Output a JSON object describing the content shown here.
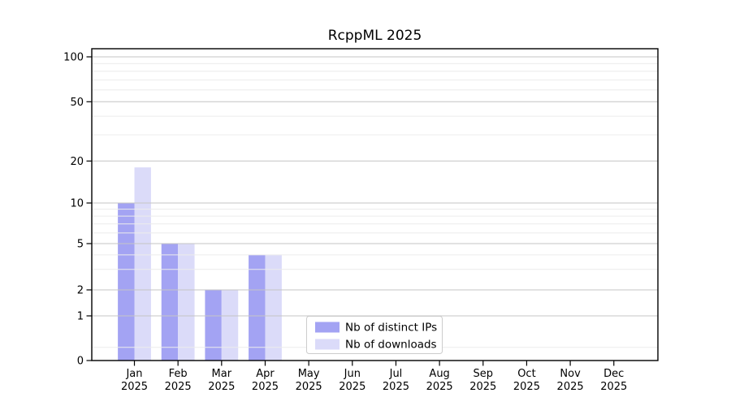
{
  "chart_data": {
    "type": "bar",
    "title": "RcppML 2025",
    "x_categories": [
      "Jan",
      "Feb",
      "Mar",
      "Apr",
      "May",
      "Jun",
      "Jul",
      "Aug",
      "Sep",
      "Oct",
      "Nov",
      "Dec"
    ],
    "x_year": "2025",
    "series": [
      {
        "name": "Nb of distinct IPs",
        "color": "#a3a3f3",
        "values": [
          10,
          5,
          2,
          4,
          0,
          0,
          0,
          0,
          0,
          0,
          0,
          0
        ]
      },
      {
        "name": "Nb of downloads",
        "color": "#dbdbf9",
        "values": [
          18,
          5,
          2,
          4,
          0,
          0,
          0,
          0,
          0,
          0,
          0,
          0
        ]
      }
    ],
    "y_axis": {
      "tick_labels": [
        "0",
        "1",
        "2",
        "5",
        "10",
        "20",
        "50",
        "100"
      ],
      "ticks": [
        0,
        1,
        2,
        5,
        10,
        20,
        50,
        100
      ],
      "minor_ticks": [
        0.5,
        3,
        4,
        6,
        7,
        8,
        9,
        30,
        40,
        60,
        70,
        80,
        90
      ],
      "scale": "log-like",
      "range": [
        0,
        100
      ]
    },
    "legend": {
      "labels": [
        "Nb of distinct IPs",
        "Nb of downloads"
      ],
      "position": "inside-bottom-center"
    },
    "grid": true,
    "colors": {
      "axis": "#000000",
      "grid_major": "#c4c4c4",
      "grid_minor": "#ececec",
      "legend_border": "#cccccc",
      "background": "#ffffff",
      "text": "#000000"
    }
  }
}
